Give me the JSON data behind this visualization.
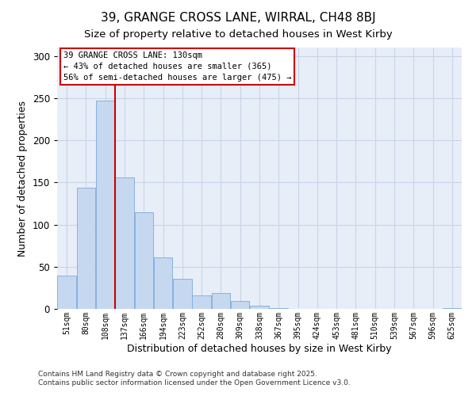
{
  "title": "39, GRANGE CROSS LANE, WIRRAL, CH48 8BJ",
  "subtitle": "Size of property relative to detached houses in West Kirby",
  "xlabel": "Distribution of detached houses by size in West Kirby",
  "ylabel": "Number of detached properties",
  "bar_labels": [
    "51sqm",
    "80sqm",
    "108sqm",
    "137sqm",
    "166sqm",
    "194sqm",
    "223sqm",
    "252sqm",
    "280sqm",
    "309sqm",
    "338sqm",
    "367sqm",
    "395sqm",
    "424sqm",
    "453sqm",
    "481sqm",
    "510sqm",
    "539sqm",
    "567sqm",
    "596sqm",
    "625sqm"
  ],
  "bar_values": [
    39,
    144,
    247,
    156,
    115,
    61,
    36,
    16,
    19,
    9,
    4,
    1,
    0,
    0,
    0,
    0,
    0,
    0,
    0,
    0,
    1
  ],
  "bar_color": "#c5d8f0",
  "bar_edge_color": "#7aabda",
  "vline_x_index": 3,
  "vline_color": "#cc0000",
  "annotation_line1": "39 GRANGE CROSS LANE: 130sqm",
  "annotation_line2": "← 43% of detached houses are smaller (365)",
  "annotation_line3": "56% of semi-detached houses are larger (475) →",
  "annotation_box_color": "white",
  "annotation_box_edge_color": "#cc0000",
  "ylim": [
    0,
    310
  ],
  "yticks": [
    0,
    50,
    100,
    150,
    200,
    250,
    300
  ],
  "bg_color": "#e8eef8",
  "grid_color": "#c8d4e8",
  "footer_line1": "Contains HM Land Registry data © Crown copyright and database right 2025.",
  "footer_line2": "Contains public sector information licensed under the Open Government Licence v3.0."
}
